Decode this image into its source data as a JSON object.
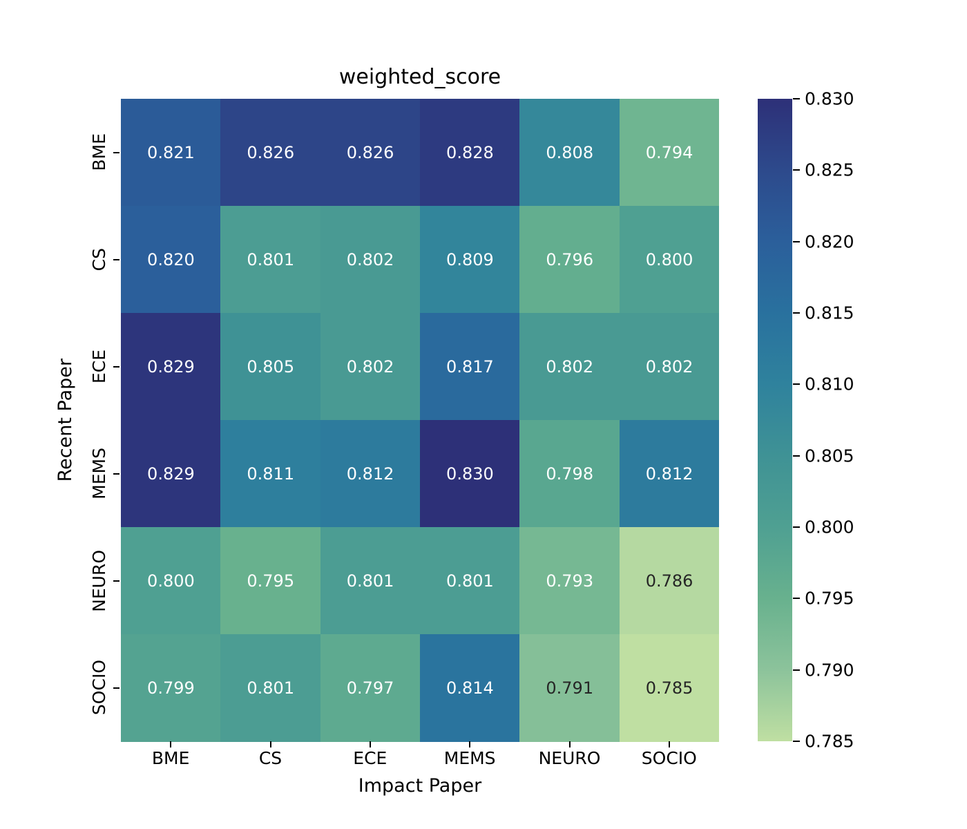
{
  "chart_data": {
    "type": "heatmap",
    "title": "weighted_score",
    "xlabel": "Impact Paper",
    "ylabel": "Recent Paper",
    "x_categories": [
      "BME",
      "CS",
      "ECE",
      "MEMS",
      "NEURO",
      "SOCIO"
    ],
    "y_categories": [
      "BME",
      "CS",
      "ECE",
      "MEMS",
      "NEURO",
      "SOCIO"
    ],
    "values": [
      [
        0.821,
        0.826,
        0.826,
        0.828,
        0.808,
        0.794
      ],
      [
        0.82,
        0.801,
        0.802,
        0.809,
        0.796,
        0.8
      ],
      [
        0.829,
        0.805,
        0.802,
        0.817,
        0.802,
        0.802
      ],
      [
        0.829,
        0.811,
        0.812,
        0.83,
        0.798,
        0.812
      ],
      [
        0.8,
        0.795,
        0.801,
        0.801,
        0.793,
        0.786
      ],
      [
        0.799,
        0.801,
        0.797,
        0.814,
        0.791,
        0.785
      ]
    ],
    "value_format_decimals": 3,
    "vmin": 0.785,
    "vmax": 0.83,
    "colorbar_tick_values": [
      0.785,
      0.79,
      0.795,
      0.8,
      0.805,
      0.81,
      0.815,
      0.82,
      0.825,
      0.83
    ],
    "colormap_stops": [
      "#bfdfa2",
      "#8cc39b",
      "#68b18e",
      "#4fa092",
      "#3f9295",
      "#2f829d",
      "#29719e",
      "#2b5f9b",
      "#2d4a8c",
      "#2d3078"
    ],
    "annot_dark_text_color": "#262626",
    "annot_light_text_color": "#ffffff",
    "grid": false,
    "legend_position": "colorbar-right"
  }
}
